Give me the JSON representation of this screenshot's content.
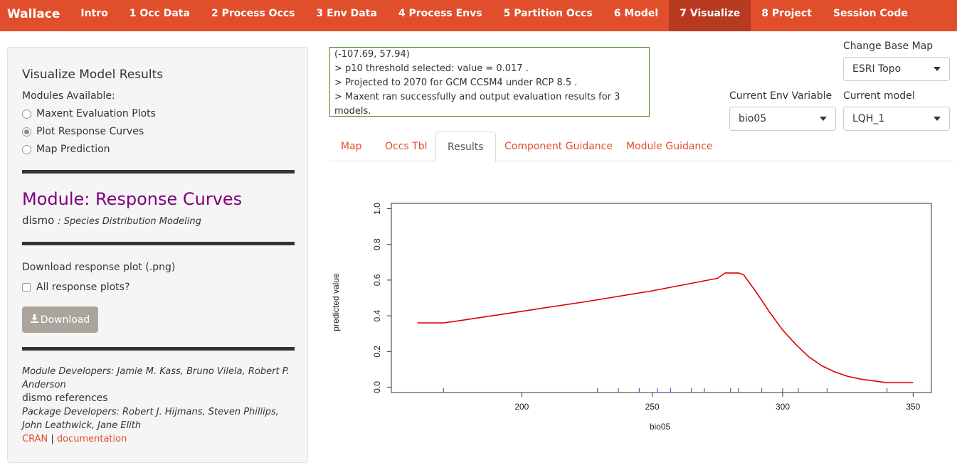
{
  "navbar": {
    "brand": "Wallace",
    "items": [
      {
        "label": "Intro"
      },
      {
        "label": "1 Occ Data"
      },
      {
        "label": "2 Process Occs"
      },
      {
        "label": "3 Env Data"
      },
      {
        "label": "4 Process Envs"
      },
      {
        "label": "5 Partition Occs"
      },
      {
        "label": "6 Model"
      },
      {
        "label": "7 Visualize",
        "active": true
      },
      {
        "label": "8 Project"
      },
      {
        "label": "Session Code"
      }
    ],
    "color": "#e04e2c",
    "active_color": "#b7391f"
  },
  "sidebar": {
    "title": "Visualize Model Results",
    "modules_label": "Modules Available:",
    "modules": [
      {
        "label": "Maxent Evaluation Plots",
        "selected": false
      },
      {
        "label": "Plot Response Curves",
        "selected": true
      },
      {
        "label": "Map Prediction",
        "selected": false
      }
    ],
    "module_title": "Module: Response Curves",
    "package_name": "dismo",
    "package_desc": ": Species Distribution Modeling",
    "download_label": "Download response plot (.png)",
    "all_plots_label": "All response plots?",
    "all_plots_checked": false,
    "download_button": "Download",
    "download_icon": "download-icon",
    "module_devs": "Module Developers: Jamie M. Kass, Bruno Vilela, Robert P. Anderson",
    "references_pkg": "dismo",
    "references_label": "references",
    "package_devs": "Package Developers: Robert J. Hijmans, Steven Phillips, John Leathwick, Jane Elith",
    "link_cran": "CRAN",
    "link_sep": "|",
    "link_docs": "documentation"
  },
  "log": {
    "lines": [
      "(-107.69, 57.94)",
      "> p10 threshold selected: value = 0.017 .",
      "> Projected to 2070 for GCM CCSM4 under RCP 8.5 .",
      "> Maxent ran successfully and output evaluation results for 3 models."
    ]
  },
  "controls": {
    "basemap_label": "Change Base Map",
    "basemap_value": "ESRI Topo",
    "env_label": "Current Env Variable",
    "env_value": "bio05",
    "model_label": "Current model",
    "model_value": "LQH_1"
  },
  "tabs": [
    {
      "label": "Map",
      "active": false
    },
    {
      "label": "Occs Tbl",
      "active": false
    },
    {
      "label": "Results",
      "active": true
    },
    {
      "label": "Component Guidance",
      "active": false
    },
    {
      "label": "Module Guidance",
      "active": false
    }
  ],
  "chart_data": {
    "type": "line",
    "xlabel": "bio05",
    "ylabel": "predicted value",
    "xlim": [
      150,
      357
    ],
    "ylim": [
      -0.03,
      1.03
    ],
    "x_ticks": [
      200,
      250,
      300,
      350
    ],
    "y_ticks": [
      0.0,
      0.2,
      0.4,
      0.6,
      0.8,
      1.0
    ],
    "y_tick_labels": [
      "0.0",
      "0.2",
      "0.4",
      "0.6",
      "0.8",
      "1.0"
    ],
    "series": [
      {
        "color": "#dd0000",
        "x": [
          160,
          170,
          175,
          200,
          225,
          250,
          275,
          278,
          283,
          285,
          287,
          290,
          295,
          300,
          305,
          310,
          315,
          320,
          325,
          330,
          335,
          340,
          345,
          350
        ],
        "y": [
          0.36,
          0.36,
          0.37,
          0.425,
          0.48,
          0.54,
          0.61,
          0.64,
          0.64,
          0.63,
          0.59,
          0.53,
          0.42,
          0.32,
          0.24,
          0.17,
          0.12,
          0.085,
          0.06,
          0.045,
          0.035,
          0.025,
          0.025,
          0.025
        ]
      }
    ],
    "rug_x": [
      170,
      229,
      237,
      245,
      252,
      257,
      265,
      270,
      280,
      283,
      292,
      300,
      306,
      317,
      340
    ],
    "rug_color": "#3333cc",
    "grid": false
  }
}
